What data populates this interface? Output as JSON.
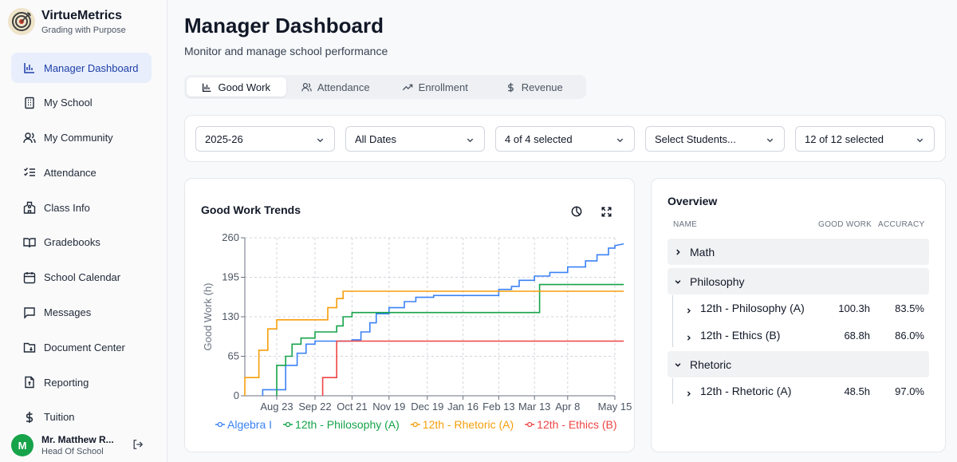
{
  "brand": {
    "name": "VirtueMetrics",
    "tagline": "Grading with Purpose"
  },
  "sidebar": {
    "items": [
      {
        "label": "Manager Dashboard",
        "icon": "bar-chart-icon",
        "active": true
      },
      {
        "label": "My School",
        "icon": "building-icon"
      },
      {
        "label": "My Community",
        "icon": "users-icon"
      },
      {
        "label": "Attendance",
        "icon": "checklist-icon"
      },
      {
        "label": "Class Info",
        "icon": "school-icon"
      },
      {
        "label": "Gradebooks",
        "icon": "book-open-icon"
      },
      {
        "label": "School Calendar",
        "icon": "calendar-icon"
      },
      {
        "label": "Messages",
        "icon": "message-icon"
      },
      {
        "label": "Document Center",
        "icon": "folder-icon"
      },
      {
        "label": "Reporting",
        "icon": "report-icon"
      },
      {
        "label": "Tuition",
        "icon": "dollar-icon"
      }
    ]
  },
  "user": {
    "initial": "M",
    "name": "Mr. Matthew R...",
    "role": "Head Of School"
  },
  "page": {
    "title": "Manager Dashboard",
    "subtitle": "Monitor and manage school performance"
  },
  "tabs": [
    {
      "label": "Good Work",
      "icon": "bar-chart-icon",
      "active": true
    },
    {
      "label": "Attendance",
      "icon": "users-icon"
    },
    {
      "label": "Enrollment",
      "icon": "trending-up-icon"
    },
    {
      "label": "Revenue",
      "icon": "dollar-icon"
    }
  ],
  "filters": [
    {
      "value": "2025-26"
    },
    {
      "value": "All Dates"
    },
    {
      "value": "4 of 4 selected"
    },
    {
      "value": "Select Students..."
    },
    {
      "value": "12 of 12 selected"
    }
  ],
  "chart_card": {
    "title": "Good Work Trends"
  },
  "chart_data": {
    "type": "line",
    "title": "Good Work Trends",
    "ylabel": "Good Work (h)",
    "xlabel": "",
    "ylim": [
      0,
      260
    ],
    "yticks": [
      0,
      65,
      130,
      195,
      260
    ],
    "x_ticks": [
      "Aug 23",
      "Sep 22",
      "Oct 21",
      "Nov 19",
      "Dec 19",
      "Jan 16",
      "Feb 13",
      "Mar 13",
      "Apr 8",
      "May 15"
    ],
    "x_start": "Jul 29",
    "grid": true,
    "legend": "bottom",
    "step": true,
    "series": [
      {
        "name": "Algebra I",
        "color": "#3b82f6",
        "points": [
          [
            "Aug 12",
            0
          ],
          [
            "Aug 12",
            10
          ],
          [
            "Aug 30",
            10
          ],
          [
            "Aug 30",
            50
          ],
          [
            "Sep 8",
            50
          ],
          [
            "Sep 8",
            70
          ],
          [
            "Sep 15",
            70
          ],
          [
            "Sep 15",
            85
          ],
          [
            "Sep 22",
            85
          ],
          [
            "Sep 22",
            90
          ],
          [
            "Oct 21",
            90
          ],
          [
            "Oct 21",
            92
          ],
          [
            "Oct 28",
            92
          ],
          [
            "Oct 28",
            105
          ],
          [
            "Nov 4",
            105
          ],
          [
            "Nov 4",
            120
          ],
          [
            "Nov 9",
            120
          ],
          [
            "Nov 9",
            135
          ],
          [
            "Nov 19",
            135
          ],
          [
            "Nov 19",
            145
          ],
          [
            "Dec 1",
            145
          ],
          [
            "Dec 1",
            155
          ],
          [
            "Dec 10",
            155
          ],
          [
            "Dec 10",
            162
          ],
          [
            "Dec 24",
            162
          ],
          [
            "Dec 24",
            165
          ],
          [
            "Feb 13",
            165
          ],
          [
            "Feb 13",
            175
          ],
          [
            "Feb 23",
            175
          ],
          [
            "Feb 23",
            180
          ],
          [
            "Mar 1",
            180
          ],
          [
            "Mar 1",
            190
          ],
          [
            "Mar 13",
            190
          ],
          [
            "Mar 13",
            197
          ],
          [
            "Mar 25",
            197
          ],
          [
            "Mar 25",
            203
          ],
          [
            "Apr 8",
            203
          ],
          [
            "Apr 8",
            212
          ],
          [
            "Apr 22",
            212
          ],
          [
            "Apr 22",
            222
          ],
          [
            "May 1",
            222
          ],
          [
            "May 1",
            232
          ],
          [
            "May 10",
            232
          ],
          [
            "May 10",
            243
          ],
          [
            "May 15",
            243
          ],
          [
            "May 15",
            247
          ],
          [
            "May 22",
            250
          ]
        ]
      },
      {
        "name": "12th - Philosophy (A)",
        "color": "#16a34a",
        "points": [
          [
            "Aug 23",
            0
          ],
          [
            "Aug 23",
            50
          ],
          [
            "Aug 30",
            50
          ],
          [
            "Aug 30",
            65
          ],
          [
            "Sep 4",
            65
          ],
          [
            "Sep 4",
            85
          ],
          [
            "Sep 11",
            85
          ],
          [
            "Sep 11",
            95
          ],
          [
            "Sep 22",
            95
          ],
          [
            "Sep 22",
            105
          ],
          [
            "Oct 9",
            105
          ],
          [
            "Oct 9",
            115
          ],
          [
            "Oct 14",
            115
          ],
          [
            "Oct 14",
            130
          ],
          [
            "Oct 21",
            130
          ],
          [
            "Oct 21",
            137
          ],
          [
            "Mar 17",
            137
          ],
          [
            "Mar 17",
            183
          ],
          [
            "May 22",
            183
          ]
        ]
      },
      {
        "name": "12th - Rhetoric (A)",
        "color": "#f59e0b",
        "points": [
          [
            "Jul 29",
            0
          ],
          [
            "Jul 29",
            30
          ],
          [
            "Aug 9",
            30
          ],
          [
            "Aug 9",
            75
          ],
          [
            "Aug 16",
            75
          ],
          [
            "Aug 16",
            110
          ],
          [
            "Aug 23",
            110
          ],
          [
            "Aug 23",
            125
          ],
          [
            "Oct 2",
            125
          ],
          [
            "Oct 2",
            145
          ],
          [
            "Oct 9",
            145
          ],
          [
            "Oct 9",
            160
          ],
          [
            "Oct 14",
            160
          ],
          [
            "Oct 14",
            172
          ],
          [
            "May 22",
            172
          ]
        ]
      },
      {
        "name": "12th - Ethics (B)",
        "color": "#ef4444",
        "points": [
          [
            "Sep 28",
            0
          ],
          [
            "Sep 28",
            30
          ],
          [
            "Oct 9",
            30
          ],
          [
            "Oct 9",
            90
          ],
          [
            "May 22",
            90
          ]
        ]
      }
    ]
  },
  "overview": {
    "title": "Overview",
    "columns": [
      "NAME",
      "GOOD WORK",
      "ACCURACY"
    ],
    "groups": [
      {
        "name": "Math",
        "expanded": false,
        "rows": []
      },
      {
        "name": "Philosophy",
        "expanded": true,
        "rows": [
          {
            "name": "12th - Philosophy (A)",
            "good_work": "100.3h",
            "accuracy": "83.5%"
          },
          {
            "name": "12th - Ethics (B)",
            "good_work": "68.8h",
            "accuracy": "86.0%"
          }
        ]
      },
      {
        "name": "Rhetoric",
        "expanded": true,
        "rows": [
          {
            "name": "12th - Rhetoric (A)",
            "good_work": "48.5h",
            "accuracy": "97.0%"
          }
        ]
      }
    ]
  }
}
